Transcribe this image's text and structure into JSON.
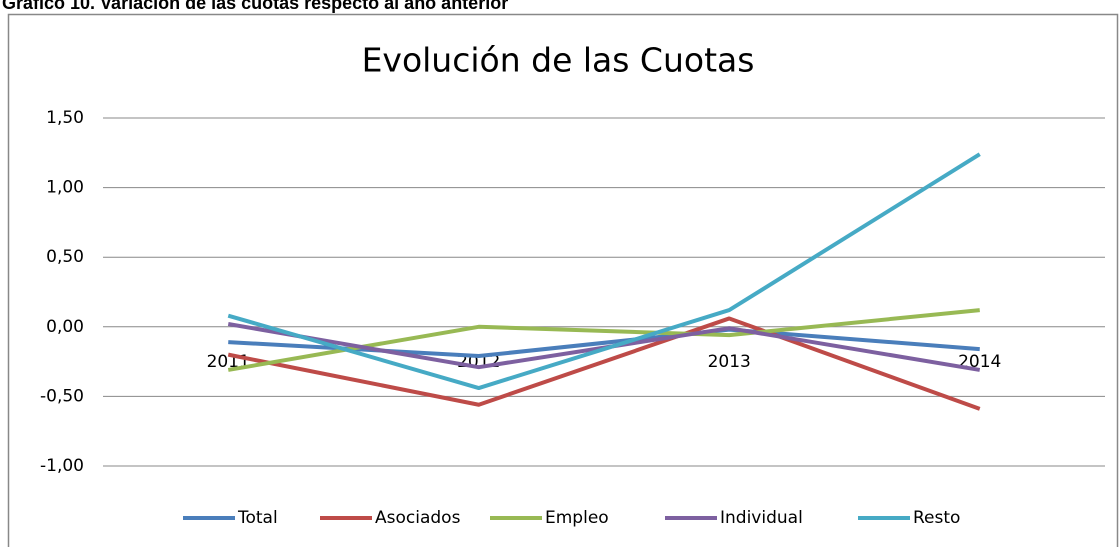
{
  "header": {
    "title": "Gráfico 10. Variación de las cuotas respecto al año anterior"
  },
  "chart_data": {
    "type": "line",
    "title": "Evolución de las Cuotas",
    "categories": [
      "2011",
      "2012",
      "2013",
      "2014"
    ],
    "series": [
      {
        "name": "Total",
        "color": "#4a7ebb",
        "values": [
          -0.11,
          -0.21,
          -0.02,
          -0.16
        ]
      },
      {
        "name": "Asociados",
        "color": "#be4b48",
        "values": [
          -0.2,
          -0.56,
          0.06,
          -0.59
        ]
      },
      {
        "name": "Empleo",
        "color": "#98b954",
        "values": [
          -0.31,
          0.0,
          -0.06,
          0.12
        ]
      },
      {
        "name": "Individual",
        "color": "#7d60a0",
        "values": [
          0.02,
          -0.29,
          -0.01,
          -0.31
        ]
      },
      {
        "name": "Resto",
        "color": "#46aac5",
        "values": [
          0.08,
          -0.44,
          0.12,
          1.24
        ]
      }
    ],
    "ylim": [
      -1,
      1.5
    ],
    "yticks": [
      {
        "value": -1,
        "label": "-1,00"
      },
      {
        "value": -0.5,
        "label": "-0,50"
      },
      {
        "value": 0,
        "label": "0,00"
      },
      {
        "value": 0.5,
        "label": "0,50"
      },
      {
        "value": 1,
        "label": "1,00"
      },
      {
        "value": 1.5,
        "label": "1,50"
      }
    ],
    "grid": true,
    "legend": "bottom"
  }
}
